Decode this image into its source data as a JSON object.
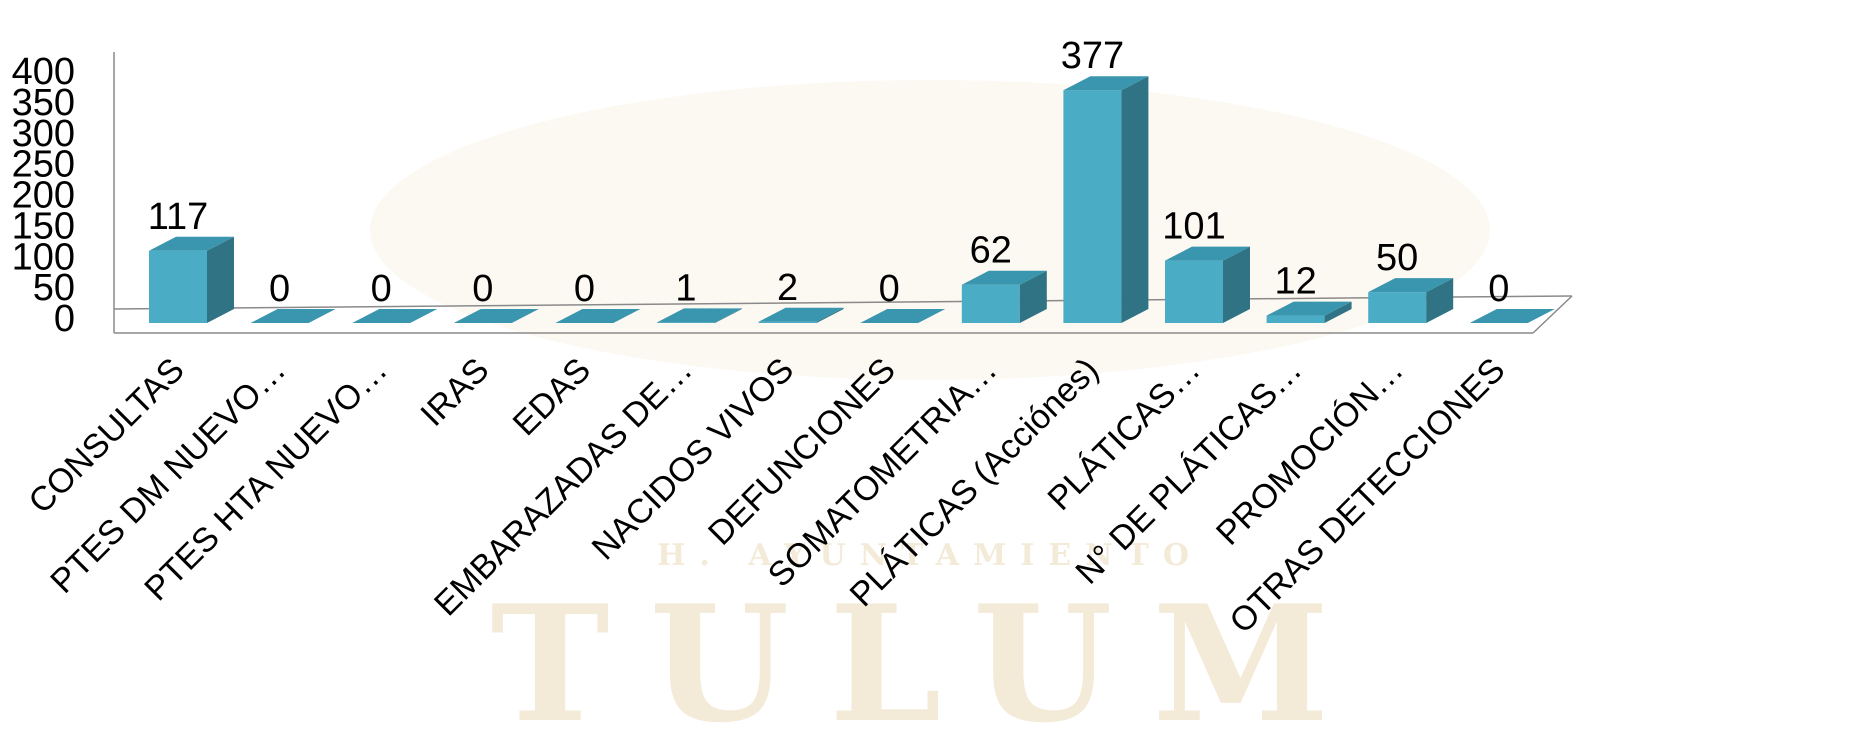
{
  "background": {
    "watermark_text": "TULUM",
    "watermark_small": "H. AYUNTAMIENTO"
  },
  "chart_data": {
    "type": "bar",
    "title": "",
    "xlabel": "",
    "ylabel": "",
    "ylim": [
      0,
      400
    ],
    "yticks": [
      0,
      50,
      100,
      150,
      200,
      250,
      300,
      350,
      400
    ],
    "categories": [
      "CONSULTAS",
      "PTES DM NUEVO…",
      "PTES HTA NUEVO…",
      "IRAS",
      "EDAS",
      "EMBARAZADAS DE…",
      "NACIDOS VIVOS",
      "DEFUNCIONES",
      "SOMATOMETRIA…",
      "PLÁTICAS (Acciónes)",
      "PLÁTICAS…",
      "N° DE PLÁTICAS…",
      "PROMOCIÓN…",
      "OTRAS DETECCIONES"
    ],
    "values": [
      117,
      0,
      0,
      0,
      0,
      1,
      2,
      0,
      62,
      377,
      101,
      12,
      50,
      0
    ],
    "colors": {
      "front": "#4bacc6",
      "top": "#3a96ae",
      "side": "#2f7384",
      "floor": "#8a8a8a"
    },
    "grid": false,
    "legend": "none",
    "style": "3d-column"
  }
}
